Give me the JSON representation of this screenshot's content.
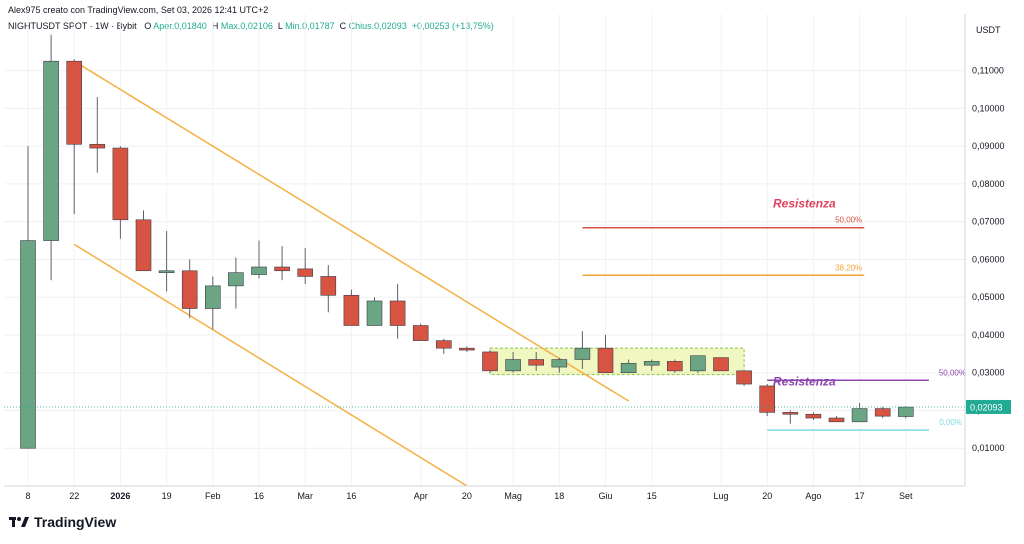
{
  "header": {
    "author_line": "Alex975 creato con TradingView.com, Set 03, 2026 12:41 UTC+2",
    "symbol": "NIGHTUSDT SPOT · 1W · Bybit",
    "o_label": "O",
    "o_value": "Aper.0,01840",
    "h_label": "H",
    "h_value": "Max.0,02106",
    "l_label": "L",
    "l_value": "Min.0,01787",
    "c_label": "C",
    "c_value": "Chius.0,02093",
    "change": "+0,00253 (+13,75%)"
  },
  "logo": "TradingView",
  "colors": {
    "up": "#6ba583",
    "down": "#d75442",
    "resistance": "#e0425e",
    "fib382": "#f2a33a",
    "purple": "#8e44ad",
    "channel": "#f5b041",
    "cyan": "#7fd8e6",
    "accent_last": "#22ab94"
  },
  "chart_data": {
    "type": "candlestick",
    "currency": "USDT",
    "ylim": [
      0,
      0.125
    ],
    "y_ticks": [
      "0,01000",
      "0,02000",
      "0,03000",
      "0,04000",
      "0,05000",
      "0,06000",
      "0,07000",
      "0,08000",
      "0,09000",
      "0,10000",
      "0,11000"
    ],
    "y_tick_values": [
      0.01,
      0.02,
      0.03,
      0.04,
      0.05,
      0.06,
      0.07,
      0.08,
      0.09,
      0.1,
      0.11
    ],
    "x_ticks": [
      {
        "label": "8",
        "i": 0
      },
      {
        "label": "22",
        "i": 2
      },
      {
        "label": "2026",
        "i": 4
      },
      {
        "label": "19",
        "i": 6
      },
      {
        "label": "Feb",
        "i": 8
      },
      {
        "label": "16",
        "i": 10
      },
      {
        "label": "Mar",
        "i": 12
      },
      {
        "label": "16",
        "i": 14
      },
      {
        "label": "Apr",
        "i": 17
      },
      {
        "label": "20",
        "i": 19
      },
      {
        "label": "Mag",
        "i": 21
      },
      {
        "label": "18",
        "i": 23
      },
      {
        "label": "Giu",
        "i": 25
      },
      {
        "label": "15",
        "i": 27
      },
      {
        "label": "Lug",
        "i": 30
      },
      {
        "label": "20",
        "i": 32
      },
      {
        "label": "Ago",
        "i": 34
      },
      {
        "label": "17",
        "i": 36
      },
      {
        "label": "Set",
        "i": 38
      }
    ],
    "candles": [
      {
        "o": 0.01,
        "h": 0.09,
        "l": 0.01,
        "c": 0.065
      },
      {
        "o": 0.065,
        "h": 0.1195,
        "l": 0.0545,
        "c": 0.1125
      },
      {
        "o": 0.1125,
        "h": 0.113,
        "l": 0.072,
        "c": 0.0905
      },
      {
        "o": 0.0905,
        "h": 0.103,
        "l": 0.083,
        "c": 0.0895
      },
      {
        "o": 0.0895,
        "h": 0.09,
        "l": 0.0655,
        "c": 0.0705
      },
      {
        "o": 0.0705,
        "h": 0.073,
        "l": 0.057,
        "c": 0.057
      },
      {
        "o": 0.0565,
        "h": 0.0675,
        "l": 0.0515,
        "c": 0.057
      },
      {
        "o": 0.057,
        "h": 0.06,
        "l": 0.0445,
        "c": 0.047
      },
      {
        "o": 0.047,
        "h": 0.0555,
        "l": 0.0415,
        "c": 0.053
      },
      {
        "o": 0.053,
        "h": 0.0605,
        "l": 0.047,
        "c": 0.0565
      },
      {
        "o": 0.056,
        "h": 0.065,
        "l": 0.055,
        "c": 0.058
      },
      {
        "o": 0.058,
        "h": 0.0635,
        "l": 0.0545,
        "c": 0.057
      },
      {
        "o": 0.0575,
        "h": 0.063,
        "l": 0.0535,
        "c": 0.0555
      },
      {
        "o": 0.0555,
        "h": 0.0585,
        "l": 0.046,
        "c": 0.0505
      },
      {
        "o": 0.0505,
        "h": 0.052,
        "l": 0.0425,
        "c": 0.0425
      },
      {
        "o": 0.0425,
        "h": 0.05,
        "l": 0.0425,
        "c": 0.049
      },
      {
        "o": 0.049,
        "h": 0.0535,
        "l": 0.039,
        "c": 0.0425
      },
      {
        "o": 0.0425,
        "h": 0.043,
        "l": 0.0385,
        "c": 0.0385
      },
      {
        "o": 0.0385,
        "h": 0.039,
        "l": 0.035,
        "c": 0.0365
      },
      {
        "o": 0.0365,
        "h": 0.037,
        "l": 0.0355,
        "c": 0.036
      },
      {
        "o": 0.0355,
        "h": 0.036,
        "l": 0.03,
        "c": 0.0305
      },
      {
        "o": 0.0305,
        "h": 0.0355,
        "l": 0.03,
        "c": 0.0335
      },
      {
        "o": 0.0335,
        "h": 0.0355,
        "l": 0.0305,
        "c": 0.032
      },
      {
        "o": 0.0315,
        "h": 0.034,
        "l": 0.03,
        "c": 0.0335
      },
      {
        "o": 0.0335,
        "h": 0.041,
        "l": 0.031,
        "c": 0.0365
      },
      {
        "o": 0.0365,
        "h": 0.04,
        "l": 0.03,
        "c": 0.03
      },
      {
        "o": 0.03,
        "h": 0.0335,
        "l": 0.03,
        "c": 0.0325
      },
      {
        "o": 0.032,
        "h": 0.0335,
        "l": 0.0305,
        "c": 0.033
      },
      {
        "o": 0.033,
        "h": 0.0335,
        "l": 0.03,
        "c": 0.0305
      },
      {
        "o": 0.0305,
        "h": 0.0345,
        "l": 0.03,
        "c": 0.0345
      },
      {
        "o": 0.034,
        "h": 0.034,
        "l": 0.0305,
        "c": 0.0305
      },
      {
        "o": 0.0305,
        "h": 0.0305,
        "l": 0.0265,
        "c": 0.027
      },
      {
        "o": 0.0265,
        "h": 0.027,
        "l": 0.0185,
        "c": 0.0195
      },
      {
        "o": 0.0195,
        "h": 0.02,
        "l": 0.0165,
        "c": 0.019
      },
      {
        "o": 0.019,
        "h": 0.0195,
        "l": 0.0175,
        "c": 0.018
      },
      {
        "o": 0.018,
        "h": 0.0185,
        "l": 0.017,
        "c": 0.017
      },
      {
        "o": 0.017,
        "h": 0.022,
        "l": 0.017,
        "c": 0.0205
      },
      {
        "o": 0.0205,
        "h": 0.021,
        "l": 0.018,
        "c": 0.0185
      },
      {
        "o": 0.0184,
        "h": 0.0211,
        "l": 0.0179,
        "c": 0.0209
      }
    ],
    "last_price_label": "0,02093",
    "last_price": 0.02093,
    "levels": [
      {
        "label": "50,00%",
        "value": 0.0684,
        "i_from": 24,
        "i_to": 36.2,
        "color": "#d75442",
        "tag": "Resistenza",
        "tag_color": "#e0425e"
      },
      {
        "label": "38,20%",
        "value": 0.0558,
        "i_from": 24,
        "i_to": 36.2,
        "color": "#f2a33a"
      },
      {
        "label": "50,00%",
        "value": 0.028,
        "i_from": 32,
        "i_to": 39,
        "color": "#8e44ad",
        "tag": "Resistenza",
        "tag_color": "#8e44ad"
      },
      {
        "label": "0,00%",
        "value": 0.0148,
        "i_from": 32,
        "i_to": 39,
        "color": "#7fd8e6"
      }
    ],
    "channel_lines": [
      {
        "i1": 2,
        "v1": 0.1125,
        "i2": 26,
        "v2": 0.0225
      },
      {
        "i1": 2,
        "v1": 0.064,
        "i2": 19,
        "v2": 0.0
      }
    ],
    "range_box": {
      "i_from": 20,
      "i_to": 31,
      "top": 0.0365,
      "bottom": 0.0295
    }
  }
}
